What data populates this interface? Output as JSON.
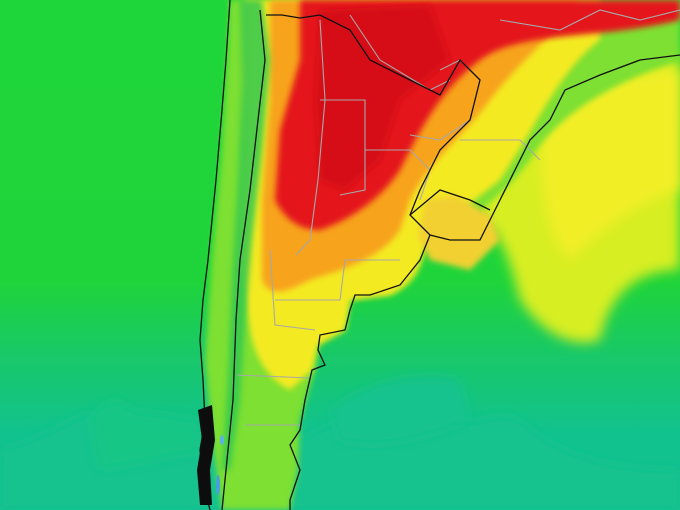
{
  "map": {
    "colors": {
      "cold_ocean": "#12c28e",
      "cool": "#22d43a",
      "mild": "#9be82a",
      "warm": "#f2ec22",
      "hot": "#f7a21e",
      "very_hot": "#e51616",
      "border_lines": "#a0a0a0",
      "coastline": "#101010"
    }
  }
}
